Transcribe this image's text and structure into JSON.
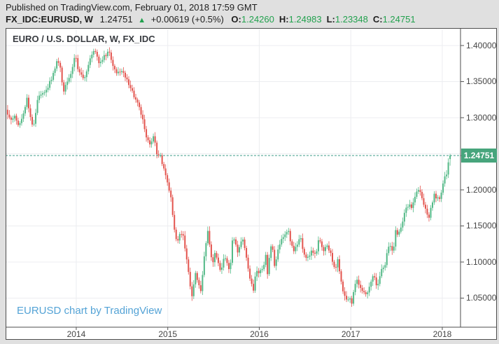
{
  "header": {
    "published_line": "Published on TradingView.com, February 01, 2018 17:59 GMT",
    "symbol": "FX_IDC:EURUSD, W",
    "last_price": "1.24751",
    "arrow": "▲",
    "change": "+0.00619 (+0.5%)",
    "ohlc": [
      {
        "label": "O:",
        "value": "1.24260"
      },
      {
        "label": "H:",
        "value": "1.24983"
      },
      {
        "label": "L:",
        "value": "1.23348"
      },
      {
        "label": "C:",
        "value": "1.24751"
      }
    ]
  },
  "chart": {
    "title": "EURO / U.S. DOLLAR, W, FX_IDC",
    "watermark": "EURUSD chart by TradingView"
  },
  "ui_colors": {
    "page_bg": "#e0e0e0",
    "panel_bg": "#ffffff",
    "frame": "#4e4e4e",
    "text_dark": "#1e1e1e",
    "value_green": "#22a14e",
    "axis_text": "#454545",
    "watermark": "#54a3d6"
  },
  "chart_data": {
    "type": "candlestick",
    "title": "EURO / U.S. DOLLAR, W, FX_IDC",
    "symbol": "EURUSD",
    "timeframe": "W",
    "legend_position": "none",
    "grid": true,
    "xlim": [
      2013.228,
      2018.199
    ],
    "ylim": [
      1.0097,
      1.4223
    ],
    "start_year": 2013.25,
    "end_year": 2018.085,
    "weeks_per_year": 52.18,
    "wiggle": 0.0055,
    "wick": 0.008,
    "current_price": 1.24751,
    "current_price_label": "1.24751",
    "last_candle": {
      "o": 1.2426,
      "h": 1.24983,
      "l": 1.23348,
      "c": 1.24751
    },
    "y_ticks": [
      {
        "price": 1.4,
        "label": "1.40000"
      },
      {
        "price": 1.35,
        "label": "1.35000"
      },
      {
        "price": 1.3,
        "label": "1.30000"
      },
      {
        "price": 1.2,
        "label": "1.20000"
      },
      {
        "price": 1.15,
        "label": "1.15000"
      },
      {
        "price": 1.1,
        "label": "1.10000"
      },
      {
        "price": 1.05,
        "label": "1.05000"
      }
    ],
    "grid_prices": [
      1.4,
      1.35,
      1.3,
      1.25,
      1.2,
      1.15,
      1.1,
      1.05
    ],
    "x_ticks": [
      {
        "year": 2014,
        "label": "2014"
      },
      {
        "year": 2015,
        "label": "2015"
      },
      {
        "year": 2016,
        "label": "2016"
      },
      {
        "year": 2017,
        "label": "2017"
      },
      {
        "year": 2018,
        "label": "2018"
      }
    ],
    "close_anchors": [
      [
        2013.25,
        1.307
      ],
      [
        2013.29,
        1.295
      ],
      [
        2013.33,
        1.301
      ],
      [
        2013.37,
        1.288
      ],
      [
        2013.42,
        1.306
      ],
      [
        2013.46,
        1.327
      ],
      [
        2013.5,
        1.301
      ],
      [
        2013.53,
        1.282
      ],
      [
        2013.58,
        1.328
      ],
      [
        2013.63,
        1.332
      ],
      [
        2013.68,
        1.341
      ],
      [
        2013.73,
        1.353
      ],
      [
        2013.79,
        1.38
      ],
      [
        2013.82,
        1.373
      ],
      [
        2013.86,
        1.336
      ],
      [
        2013.9,
        1.35
      ],
      [
        2013.94,
        1.363
      ],
      [
        2013.99,
        1.387
      ],
      [
        2014.03,
        1.362
      ],
      [
        2014.09,
        1.353
      ],
      [
        2014.13,
        1.372
      ],
      [
        2014.17,
        1.388
      ],
      [
        2014.21,
        1.393
      ],
      [
        2014.25,
        1.375
      ],
      [
        2014.29,
        1.383
      ],
      [
        2014.33,
        1.387
      ],
      [
        2014.36,
        1.392
      ],
      [
        2014.4,
        1.37
      ],
      [
        2014.44,
        1.361
      ],
      [
        2014.48,
        1.365
      ],
      [
        2014.52,
        1.359
      ],
      [
        2014.56,
        1.352
      ],
      [
        2014.6,
        1.34
      ],
      [
        2014.65,
        1.325
      ],
      [
        2014.69,
        1.313
      ],
      [
        2014.73,
        1.295
      ],
      [
        2014.77,
        1.268
      ],
      [
        2014.81,
        1.263
      ],
      [
        2014.84,
        1.276
      ],
      [
        2014.88,
        1.252
      ],
      [
        2014.92,
        1.245
      ],
      [
        2014.96,
        1.228
      ],
      [
        2015.0,
        1.21
      ],
      [
        2015.04,
        1.184
      ],
      [
        2015.07,
        1.148
      ],
      [
        2015.1,
        1.127
      ],
      [
        2015.13,
        1.14
      ],
      [
        2015.17,
        1.135
      ],
      [
        2015.19,
        1.119
      ],
      [
        2015.23,
        1.082
      ],
      [
        2015.26,
        1.049
      ],
      [
        2015.3,
        1.084
      ],
      [
        2015.33,
        1.073
      ],
      [
        2015.36,
        1.058
      ],
      [
        2015.4,
        1.11
      ],
      [
        2015.44,
        1.145
      ],
      [
        2015.46,
        1.12
      ],
      [
        2015.49,
        1.096
      ],
      [
        2015.52,
        1.115
      ],
      [
        2015.55,
        1.1
      ],
      [
        2015.58,
        1.088
      ],
      [
        2015.62,
        1.11
      ],
      [
        2015.65,
        1.098
      ],
      [
        2015.68,
        1.088
      ],
      [
        2015.71,
        1.138
      ],
      [
        2015.74,
        1.125
      ],
      [
        2015.77,
        1.112
      ],
      [
        2015.81,
        1.134
      ],
      [
        2015.84,
        1.12
      ],
      [
        2015.88,
        1.088
      ],
      [
        2015.91,
        1.074
      ],
      [
        2015.94,
        1.058
      ],
      [
        2015.96,
        1.09
      ],
      [
        2016.0,
        1.086
      ],
      [
        2016.04,
        1.089
      ],
      [
        2016.07,
        1.11
      ],
      [
        2016.09,
        1.083
      ],
      [
        2016.12,
        1.115
      ],
      [
        2016.14,
        1.125
      ],
      [
        2016.17,
        1.093
      ],
      [
        2016.2,
        1.117
      ],
      [
        2016.23,
        1.127
      ],
      [
        2016.27,
        1.139
      ],
      [
        2016.31,
        1.145
      ],
      [
        2016.34,
        1.131
      ],
      [
        2016.38,
        1.113
      ],
      [
        2016.42,
        1.128
      ],
      [
        2016.45,
        1.136
      ],
      [
        2016.48,
        1.111
      ],
      [
        2016.52,
        1.102
      ],
      [
        2016.55,
        1.111
      ],
      [
        2016.58,
        1.117
      ],
      [
        2016.62,
        1.108
      ],
      [
        2016.65,
        1.133
      ],
      [
        2016.68,
        1.121
      ],
      [
        2016.71,
        1.116
      ],
      [
        2016.74,
        1.124
      ],
      [
        2016.77,
        1.115
      ],
      [
        2016.8,
        1.1
      ],
      [
        2016.83,
        1.088
      ],
      [
        2016.86,
        1.104
      ],
      [
        2016.89,
        1.073
      ],
      [
        2016.92,
        1.059
      ],
      [
        2016.95,
        1.045
      ],
      [
        2016.98,
        1.052
      ],
      [
        2017.01,
        1.04
      ],
      [
        2017.04,
        1.07
      ],
      [
        2017.07,
        1.078
      ],
      [
        2017.1,
        1.062
      ],
      [
        2017.13,
        1.06
      ],
      [
        2017.16,
        1.054
      ],
      [
        2017.19,
        1.062
      ],
      [
        2017.22,
        1.072
      ],
      [
        2017.25,
        1.083
      ],
      [
        2017.28,
        1.066
      ],
      [
        2017.31,
        1.073
      ],
      [
        2017.33,
        1.091
      ],
      [
        2017.37,
        1.09
      ],
      [
        2017.4,
        1.118
      ],
      [
        2017.43,
        1.121
      ],
      [
        2017.46,
        1.113
      ],
      [
        2017.49,
        1.142
      ],
      [
        2017.52,
        1.14
      ],
      [
        2017.55,
        1.147
      ],
      [
        2017.58,
        1.167
      ],
      [
        2017.61,
        1.175
      ],
      [
        2017.64,
        1.182
      ],
      [
        2017.66,
        1.175
      ],
      [
        2017.7,
        1.188
      ],
      [
        2017.73,
        1.203
      ],
      [
        2017.76,
        1.195
      ],
      [
        2017.79,
        1.181
      ],
      [
        2017.82,
        1.176
      ],
      [
        2017.85,
        1.161
      ],
      [
        2017.88,
        1.179
      ],
      [
        2017.91,
        1.193
      ],
      [
        2017.94,
        1.187
      ],
      [
        2017.97,
        1.19
      ],
      [
        2018.0,
        1.201
      ],
      [
        2018.03,
        1.22
      ],
      [
        2018.05,
        1.222
      ],
      [
        2018.07,
        1.243
      ],
      [
        2018.085,
        1.2475
      ]
    ],
    "colors": {
      "up": "#53b987",
      "down": "#e3544e",
      "grid": "#ecedf0",
      "frame": "#4e4e4e",
      "last_line": "#3f9e8a",
      "last_label_bg": "#47a57c",
      "last_label_text": "#ffffff"
    }
  }
}
